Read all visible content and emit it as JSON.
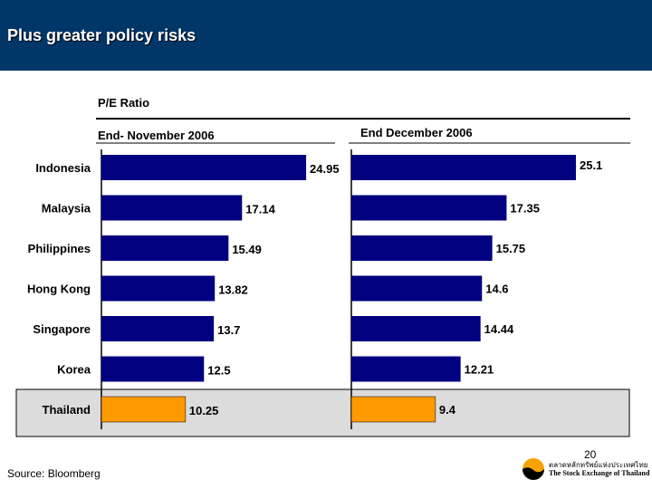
{
  "header": {
    "title": "Plus greater policy risks"
  },
  "chart_data": {
    "type": "bar",
    "orientation": "horizontal",
    "title": "P/E Ratio",
    "categories": [
      "Indonesia",
      "Malaysia",
      "Philippines",
      "Hong Kong",
      "Singapore",
      "Korea",
      "Thailand"
    ],
    "panels": [
      {
        "title": "End- November 2006",
        "values": [
          24.95,
          17.14,
          15.49,
          13.82,
          13.7,
          12.5,
          10.25
        ],
        "labels": [
          "24.95",
          "17.14",
          "15.49",
          "13.82",
          "13.7",
          "12.5",
          "10.25"
        ]
      },
      {
        "title": "End December 2006",
        "values": [
          25.1,
          17.35,
          15.75,
          14.6,
          14.44,
          12.21,
          9.4
        ],
        "labels": [
          "25.1",
          "17.35",
          "15.75",
          "14.6",
          "14.44",
          "12.21",
          "9.4"
        ]
      }
    ],
    "highlight": "Thailand",
    "colors": {
      "bar": "#000080",
      "highlight": "#ff9900",
      "highlight_background": "#dcdcdc",
      "header": "#003668"
    }
  },
  "footer": {
    "source": "Source: Bloomberg",
    "page": "20",
    "logo_thai": "ตลาดหลักทรัพย์แห่งประเทศไทย",
    "logo_en": "The Stock Exchange of Thailand"
  }
}
